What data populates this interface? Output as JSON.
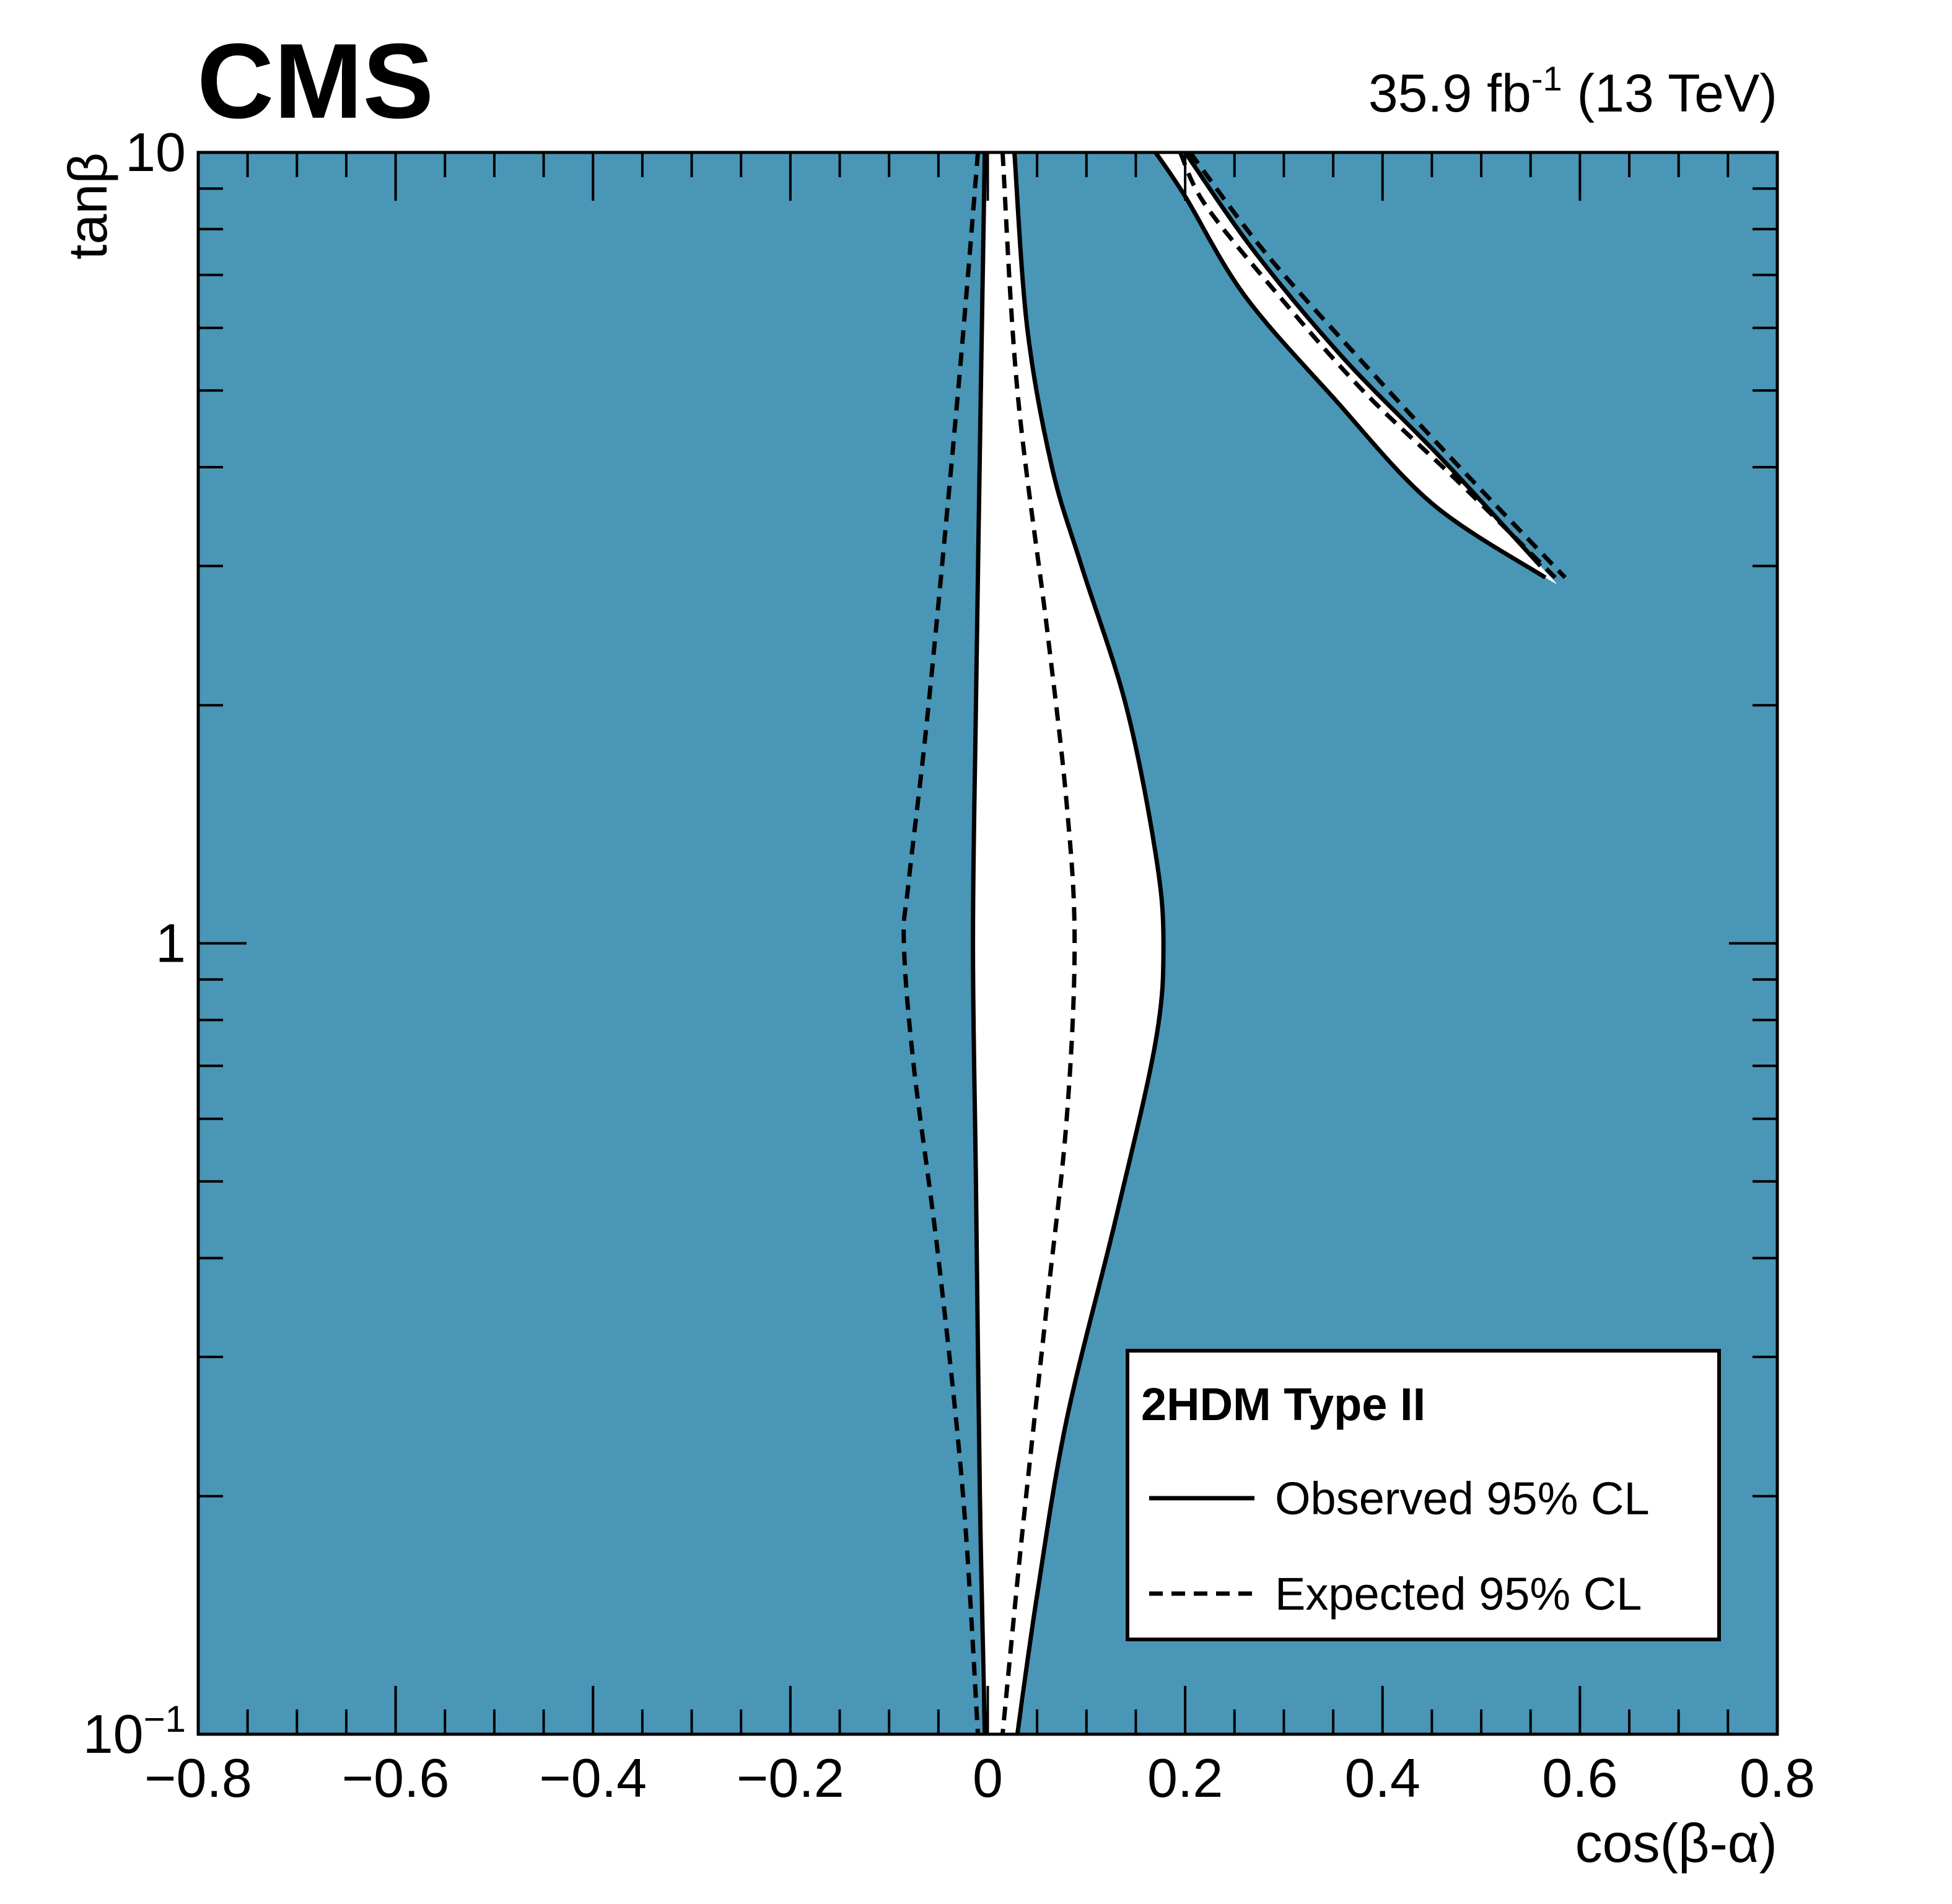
{
  "chart_data": {
    "type": "contour",
    "experiment_label": "CMS",
    "luminosity_label": "35.9 fb",
    "luminosity_superscript": "-1",
    "energy_label": "(13 TeV)",
    "xlabel": "cos(β-α)",
    "ylabel": "tanβ",
    "xlim": [
      -0.8,
      0.8
    ],
    "ylim": [
      0.1,
      10
    ],
    "yscale": "log",
    "x_ticks": [
      {
        "value": -0.8,
        "label": "−0.8"
      },
      {
        "value": -0.6,
        "label": "−0.6"
      },
      {
        "value": -0.4,
        "label": "−0.4"
      },
      {
        "value": -0.2,
        "label": "−0.2"
      },
      {
        "value": 0,
        "label": "0"
      },
      {
        "value": 0.2,
        "label": "0.2"
      },
      {
        "value": 0.4,
        "label": "0.4"
      },
      {
        "value": 0.6,
        "label": "0.6"
      },
      {
        "value": 0.8,
        "label": "0.8"
      }
    ],
    "y_ticks": [
      {
        "value": 0.1,
        "base": "10",
        "exp": "−1"
      },
      {
        "value": 1,
        "base": "1",
        "exp": ""
      },
      {
        "value": 10,
        "base": "10",
        "exp": ""
      }
    ],
    "excluded_color": "#4a96b6",
    "allowed_color": "#ffffff",
    "legend": {
      "title": "2HDM Type II",
      "placement": "bottom-right",
      "entries": [
        {
          "label": "Observed 95% CL",
          "style": "solid"
        },
        {
          "label": "Expected 95% CL",
          "style": "dashed"
        }
      ]
    },
    "series": [
      {
        "name": "Observed 95% CL",
        "style": "solid",
        "region": "central",
        "left": [
          [
            -0.003,
            10
          ],
          [
            -0.007,
            5
          ],
          [
            -0.012,
            2
          ],
          [
            -0.015,
            1
          ],
          [
            -0.012,
            0.5
          ],
          [
            -0.008,
            0.2
          ],
          [
            -0.003,
            0.1
          ]
        ],
        "right": [
          [
            0.027,
            10
          ],
          [
            0.04,
            6
          ],
          [
            0.065,
            4
          ],
          [
            0.095,
            3
          ],
          [
            0.14,
            2
          ],
          [
            0.17,
            1.3
          ],
          [
            0.178,
            1
          ],
          [
            0.17,
            0.75
          ],
          [
            0.13,
            0.45
          ],
          [
            0.08,
            0.25
          ],
          [
            0.05,
            0.15
          ],
          [
            0.03,
            0.1
          ]
        ]
      },
      {
        "name": "Observed 95% CL",
        "style": "solid",
        "region": "upper-right",
        "outer": [
          [
            0.2,
            10
          ],
          [
            0.27,
            7.5
          ],
          [
            0.36,
            5.5
          ],
          [
            0.46,
            4.1
          ],
          [
            0.56,
            3.0
          ]
        ],
        "inner": [
          [
            0.17,
            10
          ],
          [
            0.2,
            8.8
          ],
          [
            0.26,
            6.6
          ],
          [
            0.35,
            4.9
          ],
          [
            0.45,
            3.6
          ],
          [
            0.565,
            2.9
          ]
        ]
      },
      {
        "name": "Expected 95% CL",
        "style": "dashed",
        "region": "central",
        "left": [
          [
            -0.01,
            10
          ],
          [
            -0.03,
            5
          ],
          [
            -0.06,
            2
          ],
          [
            -0.08,
            1.2
          ],
          [
            -0.085,
            1
          ],
          [
            -0.075,
            0.7
          ],
          [
            -0.05,
            0.4
          ],
          [
            -0.025,
            0.2
          ],
          [
            -0.01,
            0.1
          ]
        ],
        "right": [
          [
            0.015,
            10
          ],
          [
            0.03,
            5
          ],
          [
            0.06,
            2.5
          ],
          [
            0.08,
            1.5
          ],
          [
            0.088,
            1
          ],
          [
            0.08,
            0.6
          ],
          [
            0.06,
            0.35
          ],
          [
            0.035,
            0.18
          ],
          [
            0.015,
            0.1
          ]
        ]
      },
      {
        "name": "Expected 95% CL",
        "style": "dashed",
        "region": "upper-right",
        "outer": [
          [
            0.205,
            10
          ],
          [
            0.28,
            7.5
          ],
          [
            0.37,
            5.6
          ],
          [
            0.47,
            4.1
          ],
          [
            0.585,
            2.9
          ]
        ],
        "inner": [
          [
            0.195,
            10
          ],
          [
            0.22,
            8.6
          ],
          [
            0.29,
            6.7
          ],
          [
            0.38,
            5.0
          ],
          [
            0.48,
            3.8
          ],
          [
            0.575,
            2.9
          ]
        ]
      }
    ]
  }
}
